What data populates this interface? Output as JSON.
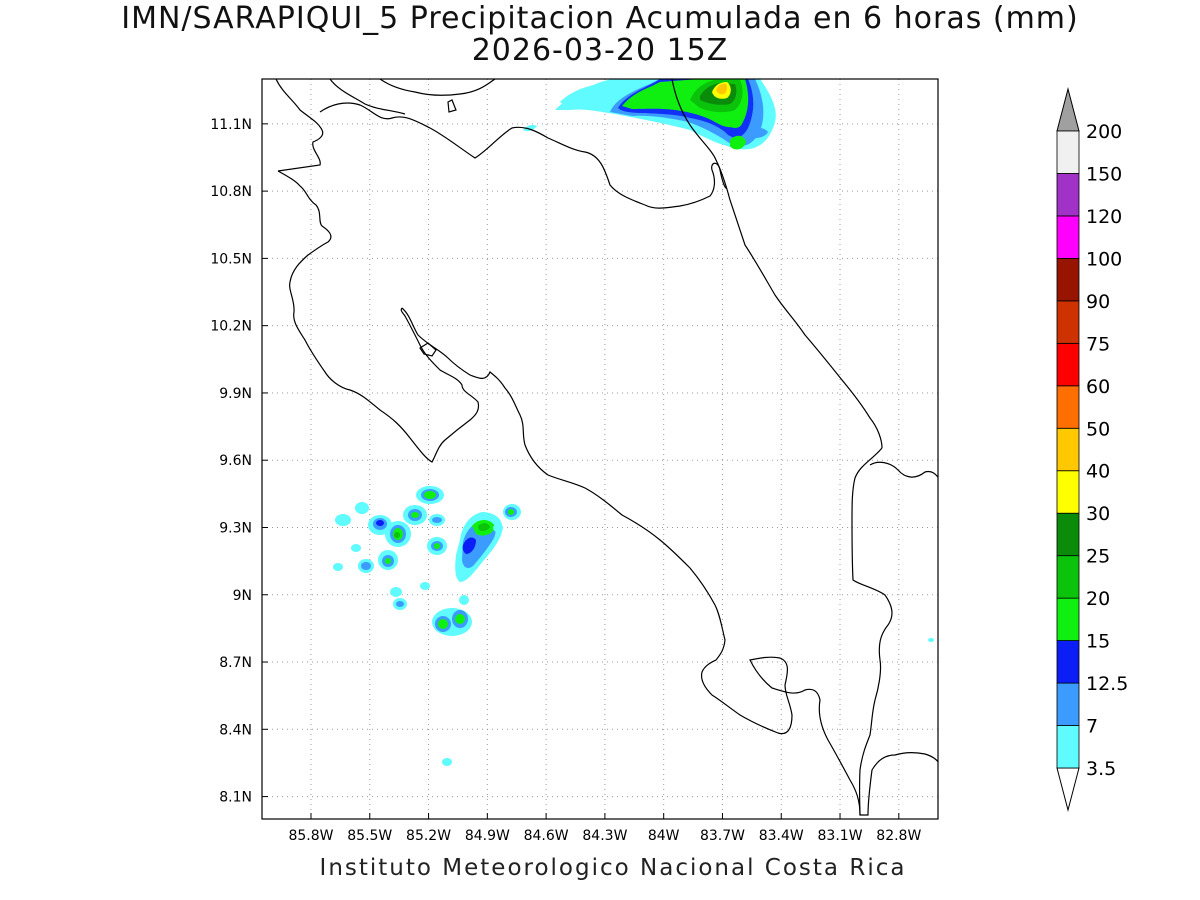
{
  "title": {
    "line1": "IMN/SARAPIQUI_5 Precipitacion Acumulada en 6 horas (mm)",
    "line2": "2026-03-20 15Z"
  },
  "footer": "Instituto Meteorologico Nacional Costa Rica",
  "map": {
    "lon_range": [
      -86.05,
      -82.6
    ],
    "lat_range": [
      8.0,
      11.3
    ],
    "x_ticks": [
      {
        "value": -85.8,
        "label": "85.8W"
      },
      {
        "value": -85.5,
        "label": "85.5W"
      },
      {
        "value": -85.2,
        "label": "85.2W"
      },
      {
        "value": -84.9,
        "label": "84.9W"
      },
      {
        "value": -84.6,
        "label": "84.6W"
      },
      {
        "value": -84.3,
        "label": "84.3W"
      },
      {
        "value": -84.0,
        "label": "84W"
      },
      {
        "value": -83.7,
        "label": "83.7W"
      },
      {
        "value": -83.4,
        "label": "83.4W"
      },
      {
        "value": -83.1,
        "label": "83.1W"
      },
      {
        "value": -82.8,
        "label": "82.8W"
      }
    ],
    "y_ticks": [
      {
        "value": 8.1,
        "label": "8.1N"
      },
      {
        "value": 8.4,
        "label": "8.4N"
      },
      {
        "value": 8.7,
        "label": "8.7N"
      },
      {
        "value": 9.0,
        "label": "9N"
      },
      {
        "value": 9.3,
        "label": "9.3N"
      },
      {
        "value": 9.6,
        "label": "9.6N"
      },
      {
        "value": 9.9,
        "label": "9.9N"
      },
      {
        "value": 10.2,
        "label": "10.2N"
      },
      {
        "value": 10.5,
        "label": "10.5N"
      },
      {
        "value": 10.8,
        "label": "10.8N"
      },
      {
        "value": 11.1,
        "label": "11.1N"
      }
    ],
    "grid": "dotted"
  },
  "colorbar": {
    "levels": [
      "3.5",
      "7",
      "12.5",
      "15",
      "20",
      "25",
      "30",
      "40",
      "50",
      "60",
      "75",
      "90",
      "100",
      "120",
      "150",
      "200"
    ],
    "colors": [
      "#5ffbff",
      "#3c9bff",
      "#0a1ef5",
      "#10f010",
      "#0ac30a",
      "#0a8c0a",
      "#ffff00",
      "#ffc800",
      "#ff6e00",
      "#ff0000",
      "#cd3200",
      "#961400",
      "#ff00ff",
      "#a032c8",
      "#f0f0f0"
    ],
    "end_top_color": "#a0a0a0",
    "end_bottom_color": "#ffffff"
  }
}
